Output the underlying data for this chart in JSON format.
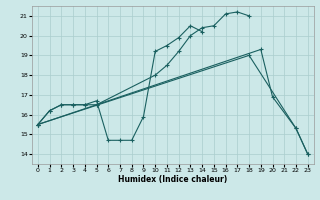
{
  "background_color": "#cce8e8",
  "grid_color": "#aacece",
  "line_color": "#1a6060",
  "xlabel": "Humidex (Indice chaleur)",
  "xlim": [
    -0.5,
    23.5
  ],
  "ylim": [
    13.5,
    21.5
  ],
  "xticks": [
    0,
    1,
    2,
    3,
    4,
    5,
    6,
    7,
    8,
    9,
    10,
    11,
    12,
    13,
    14,
    15,
    16,
    17,
    18,
    19,
    20,
    21,
    22,
    23
  ],
  "yticks": [
    14,
    15,
    16,
    17,
    18,
    19,
    20,
    21
  ],
  "curve1_x": [
    0,
    1,
    2,
    3,
    4,
    5,
    6,
    7,
    8,
    9,
    10,
    11,
    12,
    13,
    14
  ],
  "curve1_y": [
    15.5,
    16.2,
    16.5,
    16.5,
    16.5,
    16.7,
    14.7,
    14.7,
    14.7,
    15.9,
    19.2,
    19.5,
    19.9,
    20.5,
    20.2
  ],
  "curve2_x": [
    0,
    1,
    2,
    3,
    4,
    5,
    10,
    11,
    12,
    13,
    14,
    15,
    16,
    17,
    18
  ],
  "curve2_y": [
    15.5,
    16.2,
    16.5,
    16.5,
    16.5,
    16.5,
    18.0,
    18.5,
    19.2,
    20.0,
    20.4,
    20.5,
    21.1,
    21.2,
    21.0
  ],
  "curve3_x": [
    0,
    5,
    19,
    20,
    22,
    23
  ],
  "curve3_y": [
    15.5,
    16.5,
    19.3,
    16.9,
    15.3,
    14.0
  ],
  "curve4_x": [
    0,
    18,
    22,
    23
  ],
  "curve4_y": [
    15.5,
    19.0,
    15.3,
    14.0
  ]
}
